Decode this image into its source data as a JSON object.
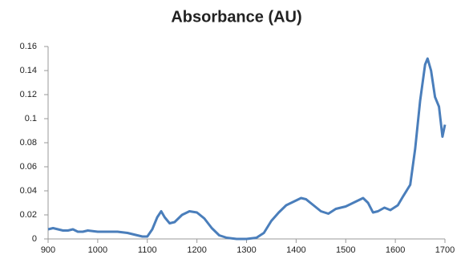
{
  "chart_data": {
    "type": "line",
    "title": "Absorbance (AU)",
    "x": [
      900,
      910,
      920,
      930,
      940,
      950,
      960,
      970,
      980,
      1000,
      1020,
      1040,
      1060,
      1080,
      1090,
      1100,
      1110,
      1120,
      1128,
      1135,
      1145,
      1155,
      1170,
      1185,
      1200,
      1215,
      1230,
      1245,
      1260,
      1280,
      1300,
      1320,
      1335,
      1350,
      1365,
      1380,
      1395,
      1410,
      1420,
      1435,
      1450,
      1465,
      1480,
      1500,
      1520,
      1535,
      1545,
      1555,
      1565,
      1578,
      1590,
      1605,
      1615,
      1630,
      1640,
      1650,
      1660,
      1665,
      1672,
      1680,
      1688,
      1695,
      1700
    ],
    "series": [
      {
        "color": "#4a7ebb",
        "values": [
          0.008,
          0.009,
          0.008,
          0.007,
          0.007,
          0.008,
          0.006,
          0.006,
          0.007,
          0.006,
          0.006,
          0.006,
          0.005,
          0.003,
          0.002,
          0.002,
          0.008,
          0.018,
          0.023,
          0.018,
          0.013,
          0.014,
          0.02,
          0.023,
          0.022,
          0.017,
          0.009,
          0.003,
          0.001,
          0.0,
          0.0,
          0.001,
          0.005,
          0.015,
          0.022,
          0.028,
          0.031,
          0.034,
          0.033,
          0.028,
          0.023,
          0.021,
          0.025,
          0.027,
          0.031,
          0.034,
          0.03,
          0.022,
          0.023,
          0.026,
          0.024,
          0.028,
          0.035,
          0.045,
          0.075,
          0.115,
          0.145,
          0.15,
          0.14,
          0.118,
          0.11,
          0.085,
          0.095
        ]
      }
    ],
    "xlim": [
      900,
      1700
    ],
    "xticks": [
      900,
      1000,
      1100,
      1200,
      1300,
      1400,
      1500,
      1600,
      1700
    ],
    "ylim": [
      0,
      0.16
    ],
    "yticks": [
      0,
      0.02,
      0.04,
      0.06,
      0.08,
      0.1,
      0.12,
      0.14,
      0.16
    ],
    "grid": false
  }
}
